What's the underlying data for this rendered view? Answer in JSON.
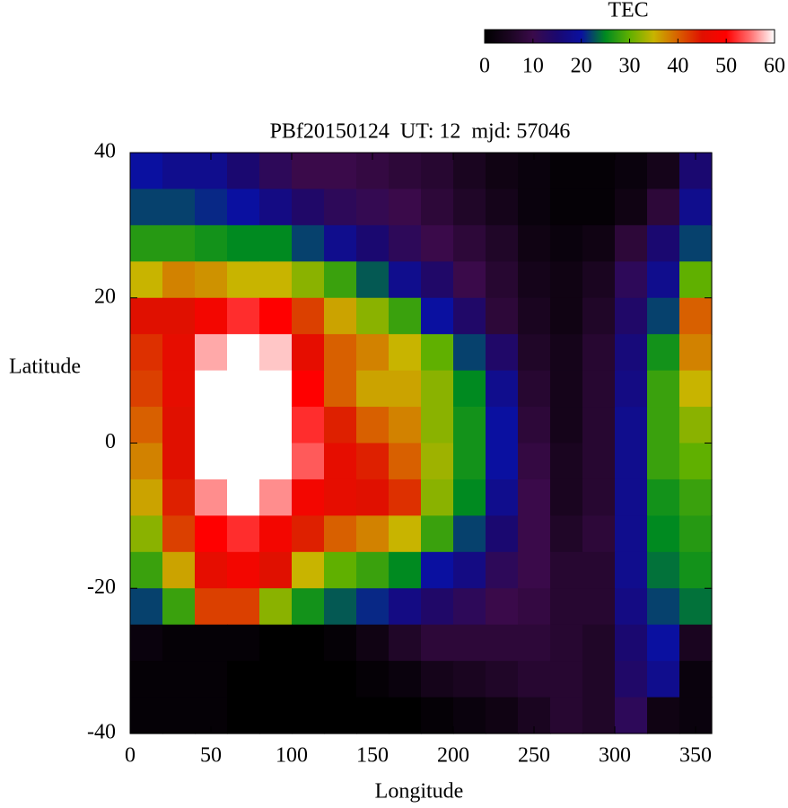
{
  "chart_data": {
    "type": "heatmap",
    "title": "PBf20150124  UT: 12  mjd: 57046",
    "xlabel": "Longitude",
    "ylabel": "Latitude",
    "x": [
      10,
      30,
      50,
      70,
      90,
      110,
      130,
      150,
      170,
      190,
      210,
      230,
      250,
      270,
      290,
      310,
      330,
      350
    ],
    "y": [
      37.5,
      32.5,
      27.5,
      22.5,
      17.5,
      12.5,
      7.5,
      2.5,
      -2.5,
      -7.5,
      -12.5,
      -17.5,
      -22.5,
      -27.5,
      -32.5,
      -37.5
    ],
    "z": [
      [
        20,
        18,
        18,
        15,
        12,
        10,
        10,
        9,
        8,
        7,
        5,
        3,
        2,
        1,
        1,
        2,
        4,
        15
      ],
      [
        22,
        22,
        21,
        20,
        17,
        14,
        12,
        11,
        10,
        8,
        6,
        4,
        2,
        1,
        1,
        3,
        8,
        18
      ],
      [
        27,
        27,
        26,
        25,
        25,
        22,
        18,
        15,
        12,
        10,
        8,
        6,
        3,
        2,
        3,
        8,
        15,
        22
      ],
      [
        35,
        38,
        37,
        35,
        35,
        32,
        28,
        23,
        18,
        14,
        10,
        7,
        4,
        3,
        5,
        12,
        18,
        30
      ],
      [
        45,
        45,
        48,
        52,
        50,
        42,
        36,
        32,
        28,
        20,
        14,
        8,
        5,
        3,
        6,
        14,
        22,
        40
      ],
      [
        43,
        46,
        57,
        60,
        58,
        46,
        40,
        38,
        35,
        30,
        22,
        14,
        6,
        4,
        7,
        16,
        26,
        38
      ],
      [
        42,
        46,
        60,
        60,
        60,
        50,
        40,
        36,
        36,
        32,
        25,
        18,
        7,
        4,
        7,
        17,
        28,
        35
      ],
      [
        40,
        45,
        60,
        60,
        60,
        52,
        44,
        40,
        38,
        32,
        26,
        20,
        8,
        4,
        7,
        18,
        28,
        32
      ],
      [
        38,
        45,
        60,
        60,
        60,
        54,
        46,
        44,
        40,
        33,
        26,
        20,
        9,
        5,
        7,
        18,
        28,
        30
      ],
      [
        36,
        44,
        56,
        60,
        56,
        48,
        46,
        45,
        43,
        32,
        25,
        18,
        10,
        5,
        7,
        18,
        26,
        28
      ],
      [
        32,
        42,
        50,
        52,
        48,
        44,
        40,
        38,
        35,
        28,
        22,
        15,
        10,
        6,
        8,
        18,
        25,
        27
      ],
      [
        28,
        36,
        46,
        48,
        45,
        35,
        30,
        28,
        25,
        20,
        17,
        12,
        10,
        7,
        7,
        18,
        24,
        26
      ],
      [
        22,
        28,
        42,
        42,
        32,
        26,
        23,
        21,
        17,
        14,
        12,
        10,
        9,
        7,
        7,
        17,
        22,
        24
      ],
      [
        2,
        1,
        1,
        1,
        0,
        0,
        1,
        3,
        6,
        8,
        8,
        8,
        8,
        7,
        6,
        15,
        20,
        5
      ],
      [
        1,
        1,
        1,
        0,
        0,
        0,
        0,
        1,
        2,
        4,
        5,
        6,
        7,
        7,
        6,
        14,
        18,
        2
      ],
      [
        1,
        1,
        1,
        0,
        0,
        0,
        0,
        0,
        0,
        1,
        2,
        3,
        5,
        7,
        6,
        12,
        3,
        2
      ]
    ],
    "xlim": [
      0,
      360
    ],
    "xticks": [
      0,
      50,
      100,
      150,
      200,
      250,
      300,
      350
    ],
    "ylim": [
      -40,
      40
    ],
    "yticks": [
      -40,
      -20,
      0,
      20,
      40
    ],
    "colorbar": {
      "label": "TEC",
      "clim": [
        0,
        60
      ],
      "ticks": [
        0,
        10,
        20,
        30,
        40,
        50,
        60
      ],
      "colormap": [
        "#000000",
        "#1a0520",
        "#3a0a4a",
        "#1a0870",
        "#0a10a0",
        "#008a20",
        "#60b000",
        "#c8b400",
        "#d86000",
        "#e01000",
        "#ff0000",
        "#ff7070",
        "#ffffff"
      ]
    }
  }
}
